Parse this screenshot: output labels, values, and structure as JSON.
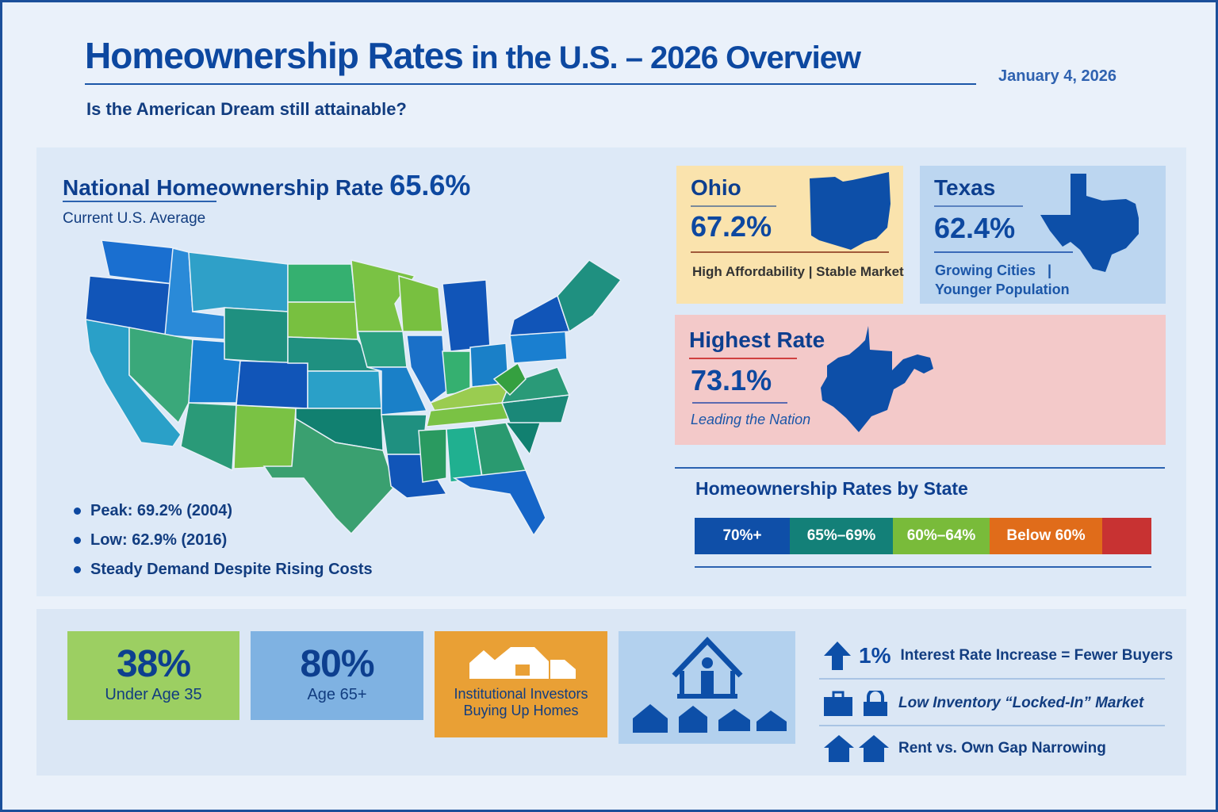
{
  "header": {
    "title_main": "Homeownership Rates",
    "title_rest": " in the U.S. – 2026 Overview",
    "date": "January 4, 2026",
    "subtitle": "Is the American Dream still attainable?"
  },
  "national": {
    "label": "National Homeownership Rate",
    "value": "65.6%",
    "sublabel": "Current U.S. Average",
    "bullets": [
      "Peak: 69.2% (2004)",
      "Low: 62.9% (2016)",
      "Steady Demand Despite Rising Costs"
    ]
  },
  "ohio": {
    "name": "Ohio",
    "rate": "67.2%",
    "note": "High Affordability | Stable Market",
    "bg": "#fae3ad"
  },
  "texas": {
    "name": "Texas",
    "rate": "62.4%",
    "note1": "Growing Cities   |",
    "note2": "Younger Population",
    "bg": "#bcd6f0"
  },
  "highest": {
    "label": "Highest Rate",
    "rate": "73.1%",
    "note": "Leading the Nation",
    "bg": "#f3c9c9"
  },
  "legend": {
    "title": "Homeownership Rates by State",
    "items": [
      {
        "label": "70%+",
        "color": "#0f4fa8"
      },
      {
        "label": "65%–69%",
        "color": "#138078"
      },
      {
        "label": "60%–64%",
        "color": "#79bb3a"
      },
      {
        "label": "Below 60%",
        "color": "#e06c1a"
      },
      {
        "label": "",
        "color": "#c83232"
      }
    ]
  },
  "stats": [
    {
      "value": "38%",
      "label": "Under Age 35",
      "bg": "#9ccf62"
    },
    {
      "value": "80%",
      "label": "Age 65+",
      "bg": "#7fb2e2"
    },
    {
      "label1": "Institutional Investors",
      "label2": "Buying Up Homes",
      "bg": "#e9a035"
    }
  ],
  "facts": [
    {
      "icon": "arrow-up-icon",
      "big": "1%",
      "text": "Interest Rate Increase = Fewer Buyers"
    },
    {
      "icon": "briefcase-lock-icon",
      "text": "Low Inventory “Locked-In” Market"
    },
    {
      "icon": "houses-icon",
      "text": "Rent vs. Own Gap Narrowing"
    }
  ]
}
